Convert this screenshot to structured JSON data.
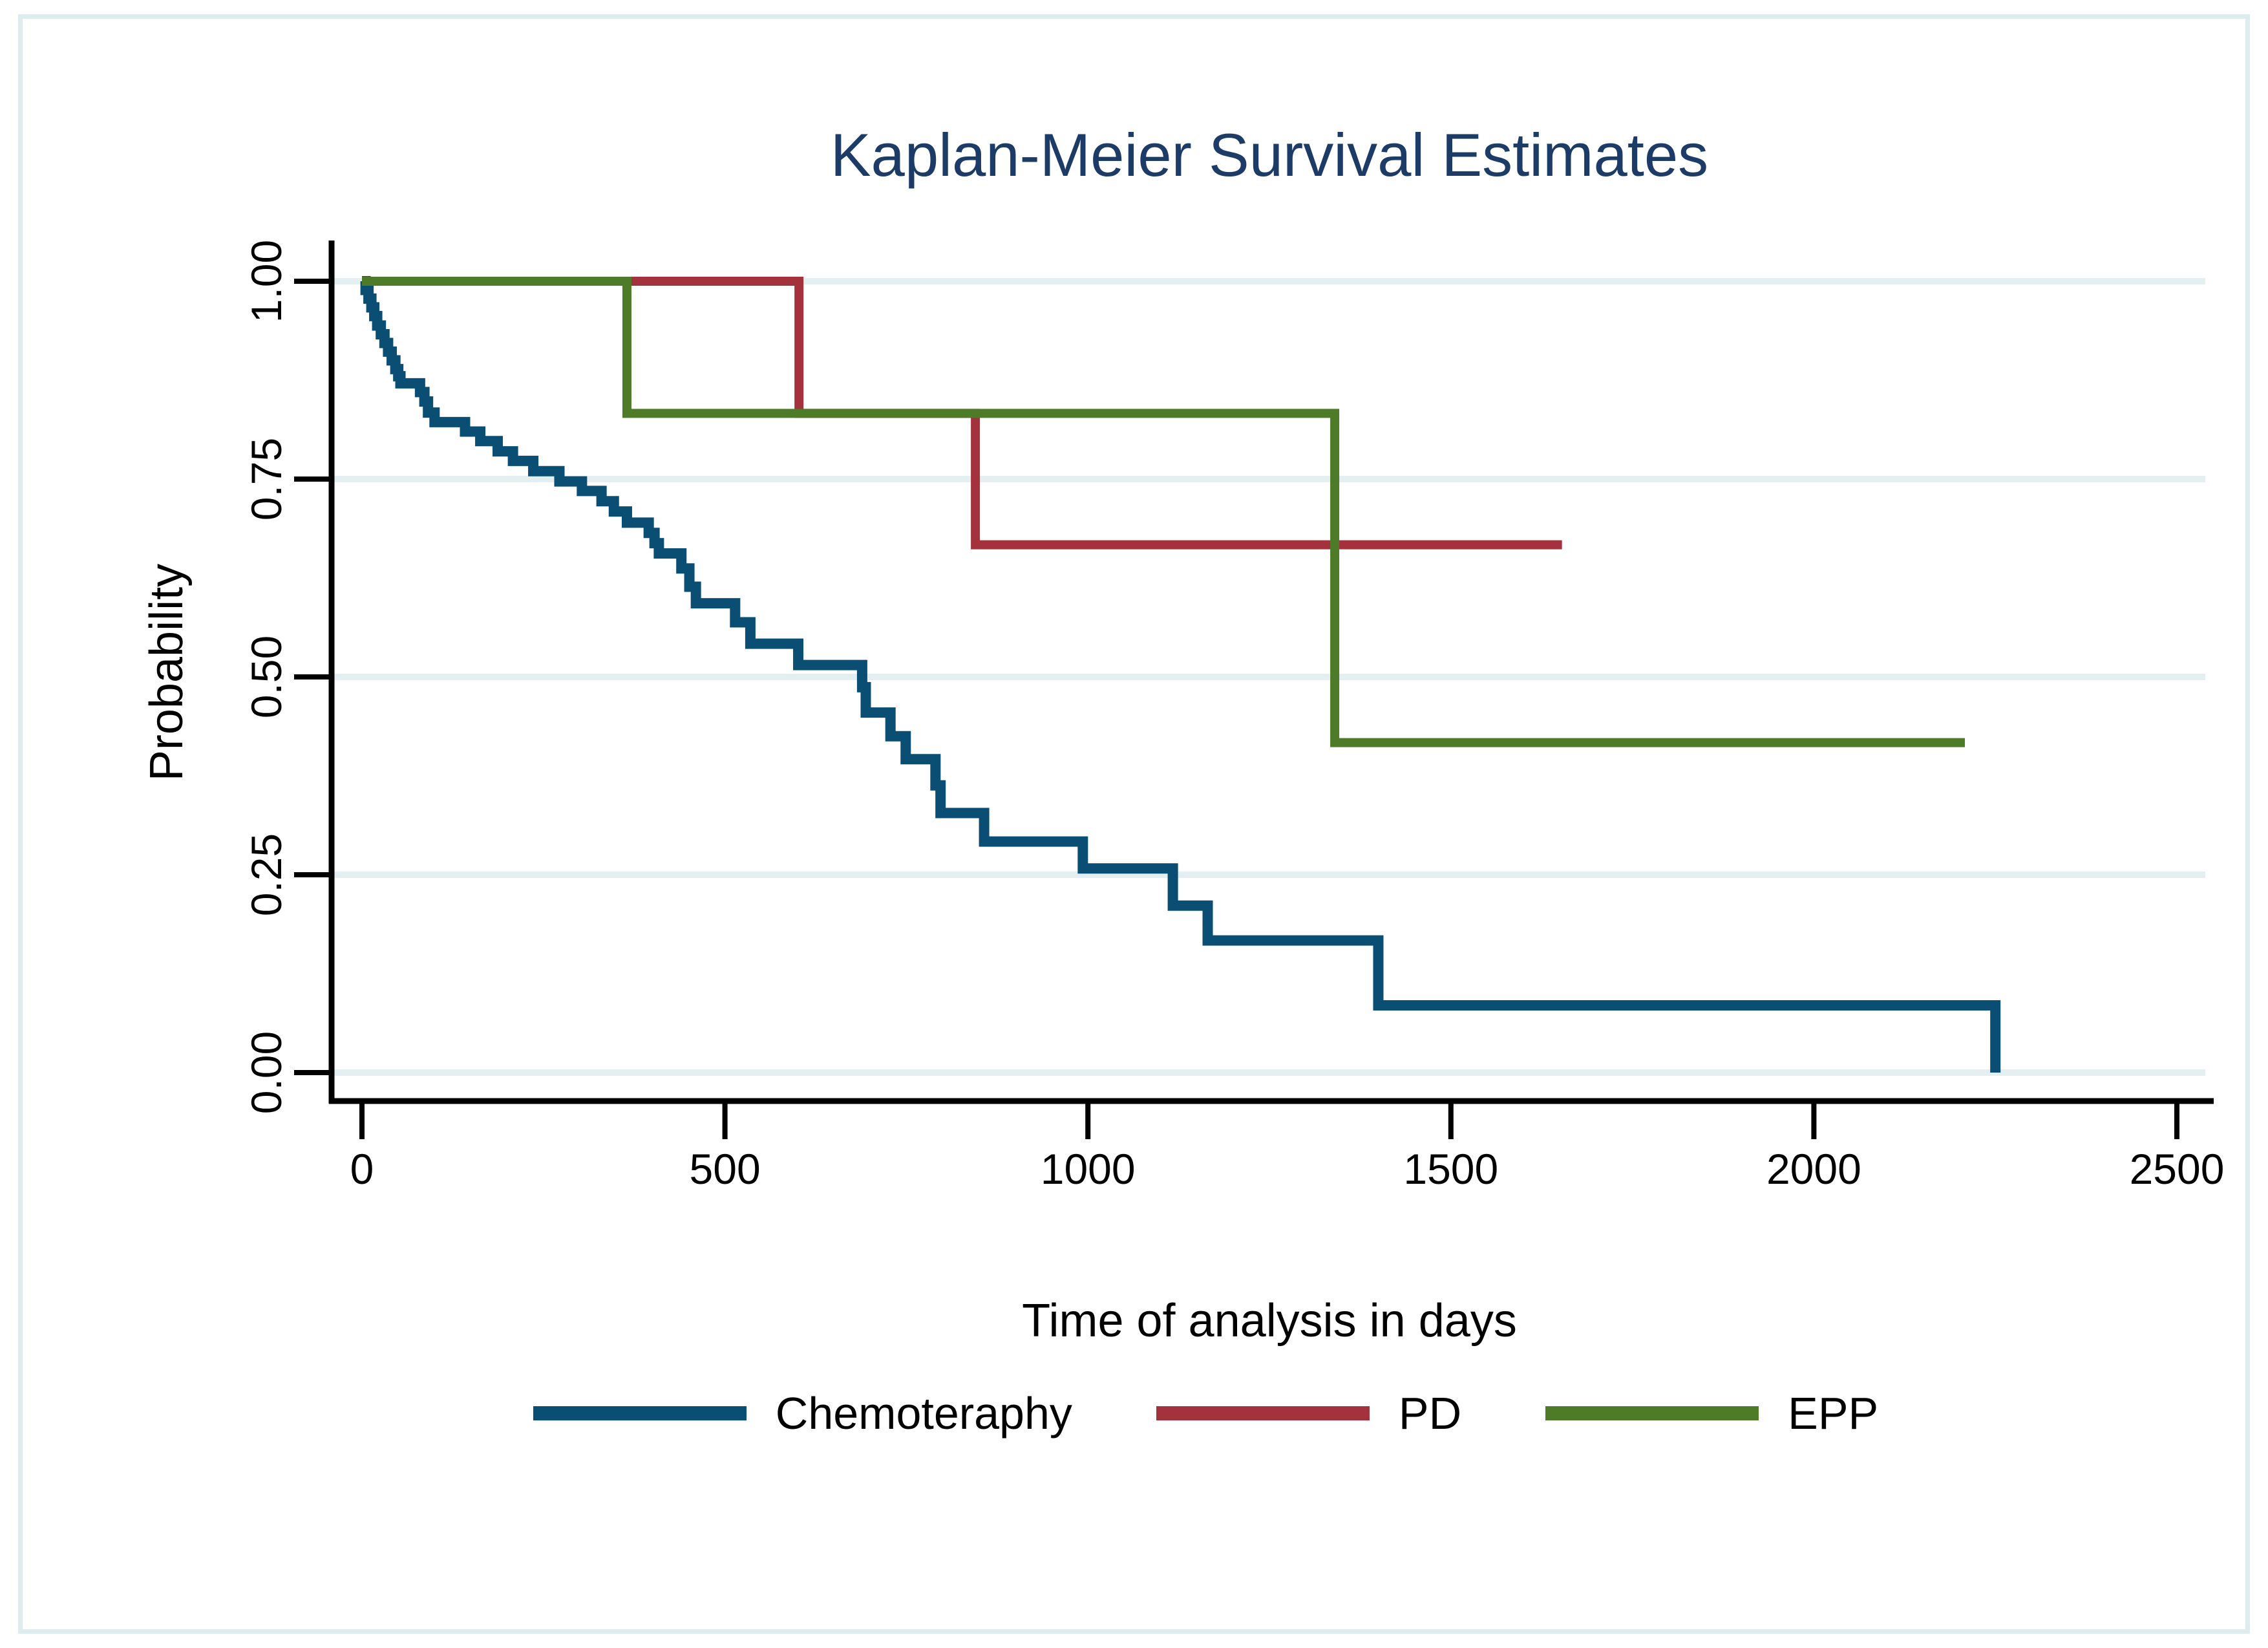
{
  "figure": {
    "title": "Kaplan-Meier Survival Estimates"
  },
  "style": {
    "title_color": "#1c3b66",
    "grid_color": "#e4eff2",
    "frame_border_color": "#dfecef",
    "axis_color": "#000000"
  },
  "chart_data": {
    "type": "line",
    "subtype": "kaplan-meier-step",
    "title": "Kaplan-Meier Survival Estimates",
    "xlabel": "Time of analysis in days",
    "ylabel": "Probability",
    "xlim": [
      0,
      2500
    ],
    "ylim": [
      0.0,
      1.0
    ],
    "grid": "horizontal-only",
    "legend_position": "bottom",
    "x_ticks": [
      {
        "value": 0,
        "label": "0"
      },
      {
        "value": 500,
        "label": "500"
      },
      {
        "value": 1000,
        "label": "1000"
      },
      {
        "value": 1500,
        "label": "1500"
      },
      {
        "value": 2000,
        "label": "2000"
      },
      {
        "value": 2500,
        "label": "2500"
      }
    ],
    "y_ticks": [
      {
        "value": 1.0,
        "label": "1.00"
      },
      {
        "value": 0.75,
        "label": "0.75"
      },
      {
        "value": 0.5,
        "label": "0.50"
      },
      {
        "value": 0.25,
        "label": "0.25"
      },
      {
        "value": 0.0,
        "label": "0.00"
      }
    ],
    "series": [
      {
        "name": "Chemoteraphy",
        "color": "#0a4e73",
        "width": 16,
        "end_day": 2250,
        "steps": [
          [
            0,
            1.0
          ],
          [
            5,
            0.989
          ],
          [
            9,
            0.978
          ],
          [
            13,
            0.967
          ],
          [
            17,
            0.956
          ],
          [
            21,
            0.944
          ],
          [
            26,
            0.933
          ],
          [
            31,
            0.922
          ],
          [
            36,
            0.911
          ],
          [
            41,
            0.9
          ],
          [
            46,
            0.889
          ],
          [
            50,
            0.88
          ],
          [
            53,
            0.871
          ],
          [
            80,
            0.86
          ],
          [
            86,
            0.848
          ],
          [
            91,
            0.834
          ],
          [
            100,
            0.822
          ],
          [
            142,
            0.81
          ],
          [
            163,
            0.798
          ],
          [
            187,
            0.785
          ],
          [
            208,
            0.773
          ],
          [
            236,
            0.76
          ],
          [
            272,
            0.747
          ],
          [
            303,
            0.735
          ],
          [
            330,
            0.722
          ],
          [
            347,
            0.709
          ],
          [
            365,
            0.695
          ],
          [
            395,
            0.682
          ],
          [
            403,
            0.669
          ],
          [
            409,
            0.656
          ],
          [
            440,
            0.637
          ],
          [
            451,
            0.614
          ],
          [
            460,
            0.593
          ],
          [
            514,
            0.569
          ],
          [
            535,
            0.542
          ],
          [
            601,
            0.515
          ],
          [
            689,
            0.487
          ],
          [
            694,
            0.455
          ],
          [
            728,
            0.425
          ],
          [
            749,
            0.396
          ],
          [
            790,
            0.363
          ],
          [
            797,
            0.328
          ],
          [
            857,
            0.292
          ],
          [
            993,
            0.258
          ],
          [
            1117,
            0.211
          ],
          [
            1165,
            0.167
          ],
          [
            1400,
            0.085
          ],
          [
            2250,
            0.0
          ]
        ]
      },
      {
        "name": "PD",
        "color": "#a3323c",
        "width": 14,
        "end_day": 1653,
        "steps": [
          [
            0,
            1.0
          ],
          [
            602,
            0.833
          ],
          [
            845,
            0.667
          ]
        ]
      },
      {
        "name": "EPP",
        "color": "#4d7b28",
        "width": 14,
        "end_day": 2208,
        "steps": [
          [
            0,
            1.0
          ],
          [
            365,
            0.833
          ],
          [
            1340,
            0.417
          ]
        ]
      }
    ]
  },
  "legend": {
    "items": [
      {
        "label": "Chemoteraphy"
      },
      {
        "label": "PD"
      },
      {
        "label": "EPP"
      }
    ]
  }
}
